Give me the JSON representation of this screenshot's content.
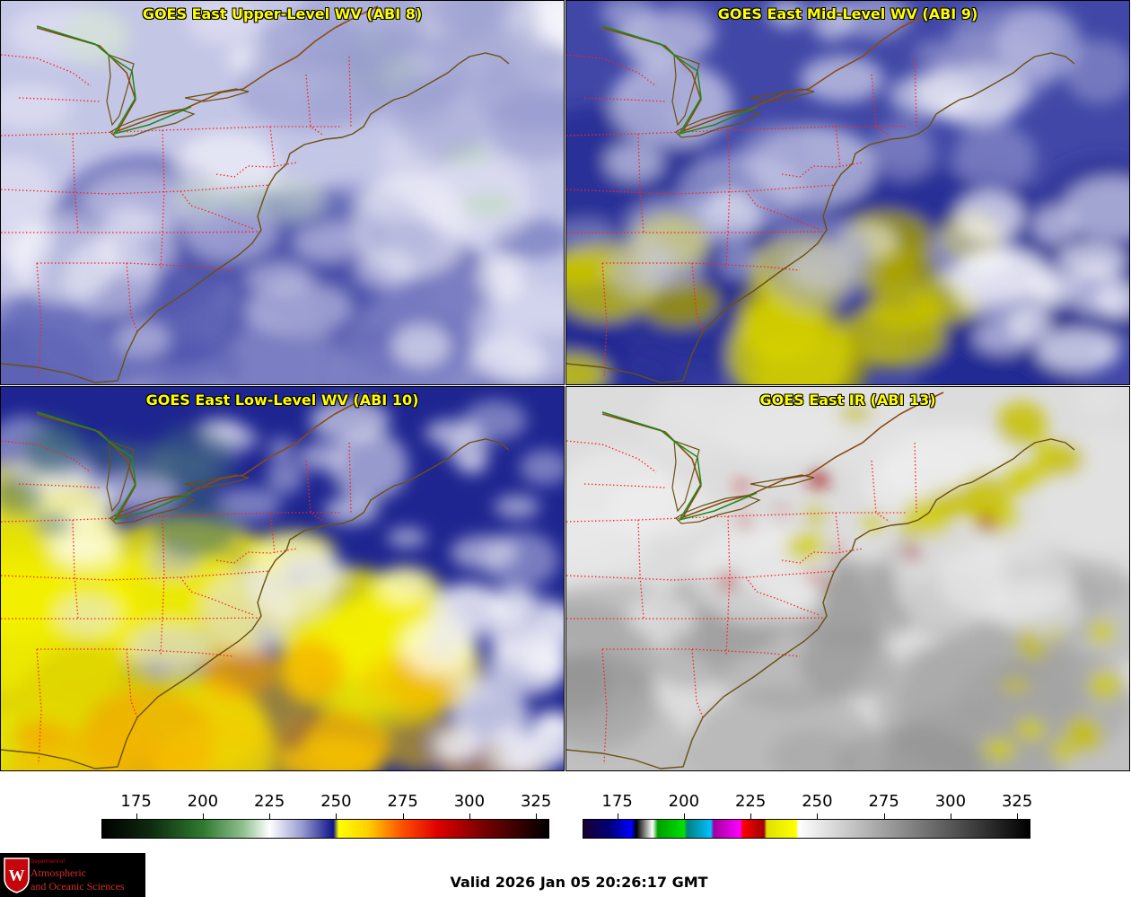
{
  "panels": [
    {
      "title": "GOES East Upper-Level WV (ABI 8)",
      "band": "ABI 8",
      "scene_colors": [
        "#c4c6e6",
        "#9ea1d1",
        "#6f74bd",
        "#e9eaf6"
      ]
    },
    {
      "title": "GOES East Mid-Level WV (ABI 9)",
      "band": "ABI 9",
      "scene_colors": [
        "#4047a6",
        "#202792",
        "#8c8fca",
        "#c8c300"
      ]
    },
    {
      "title": "GOES East Low-Level WV (ABI 10)",
      "band": "ABI 10",
      "scene_colors": [
        "#1e2590",
        "#ece800",
        "#f2a400",
        "#e8e8f4"
      ]
    },
    {
      "title": "GOES East IR (ABI 13)",
      "band": "ABI 13",
      "scene_colors": [
        "#dcdcdc",
        "#9c9c9c",
        "#d0cc00",
        "#aa1818"
      ]
    }
  ],
  "colorbars": [
    {
      "name": "water-vapor-scale",
      "ticks": [
        "175",
        "200",
        "225",
        "250",
        "275",
        "300",
        "325"
      ],
      "min": 162,
      "max": 330,
      "stops": [
        {
          "v": 162,
          "c": "#000000"
        },
        {
          "v": 180,
          "c": "#0e2a0e"
        },
        {
          "v": 200,
          "c": "#2f7a2f"
        },
        {
          "v": 215,
          "c": "#8fbf8f"
        },
        {
          "v": 225,
          "c": "#ffffff"
        },
        {
          "v": 237,
          "c": "#9a9dd0"
        },
        {
          "v": 249,
          "c": "#10158a"
        },
        {
          "v": 251,
          "c": "#ffff00"
        },
        {
          "v": 262,
          "c": "#ffd000"
        },
        {
          "v": 275,
          "c": "#ff5000"
        },
        {
          "v": 288,
          "c": "#e00000"
        },
        {
          "v": 305,
          "c": "#7a0000"
        },
        {
          "v": 330,
          "c": "#000000"
        }
      ]
    },
    {
      "name": "infrared-scale",
      "ticks": [
        "175",
        "200",
        "225",
        "250",
        "275",
        "300",
        "325"
      ],
      "min": 162,
      "max": 330,
      "stops": [
        {
          "v": 162,
          "c": "#1a0030"
        },
        {
          "v": 172,
          "c": "#00007a"
        },
        {
          "v": 180,
          "c": "#0000ff"
        },
        {
          "v": 182,
          "c": "#000000"
        },
        {
          "v": 188,
          "c": "#ffffff"
        },
        {
          "v": 190,
          "c": "#00a000"
        },
        {
          "v": 200,
          "c": "#00e000"
        },
        {
          "v": 201,
          "c": "#008080"
        },
        {
          "v": 210,
          "c": "#00c0ff"
        },
        {
          "v": 211,
          "c": "#a000a0"
        },
        {
          "v": 221,
          "c": "#ff00ff"
        },
        {
          "v": 222,
          "c": "#ff0000"
        },
        {
          "v": 230,
          "c": "#a00000"
        },
        {
          "v": 231,
          "c": "#e0e000"
        },
        {
          "v": 242,
          "c": "#ffff00"
        },
        {
          "v": 243,
          "c": "#ffffff"
        },
        {
          "v": 330,
          "c": "#000000"
        }
      ]
    }
  ],
  "logo": {
    "line1": "Department of",
    "line2": "Atmospheric",
    "line3": "and Oceanic Sciences",
    "seal_letter": "W"
  },
  "valid_time": "Valid 2026 Jan 05 20:26:17 GMT"
}
